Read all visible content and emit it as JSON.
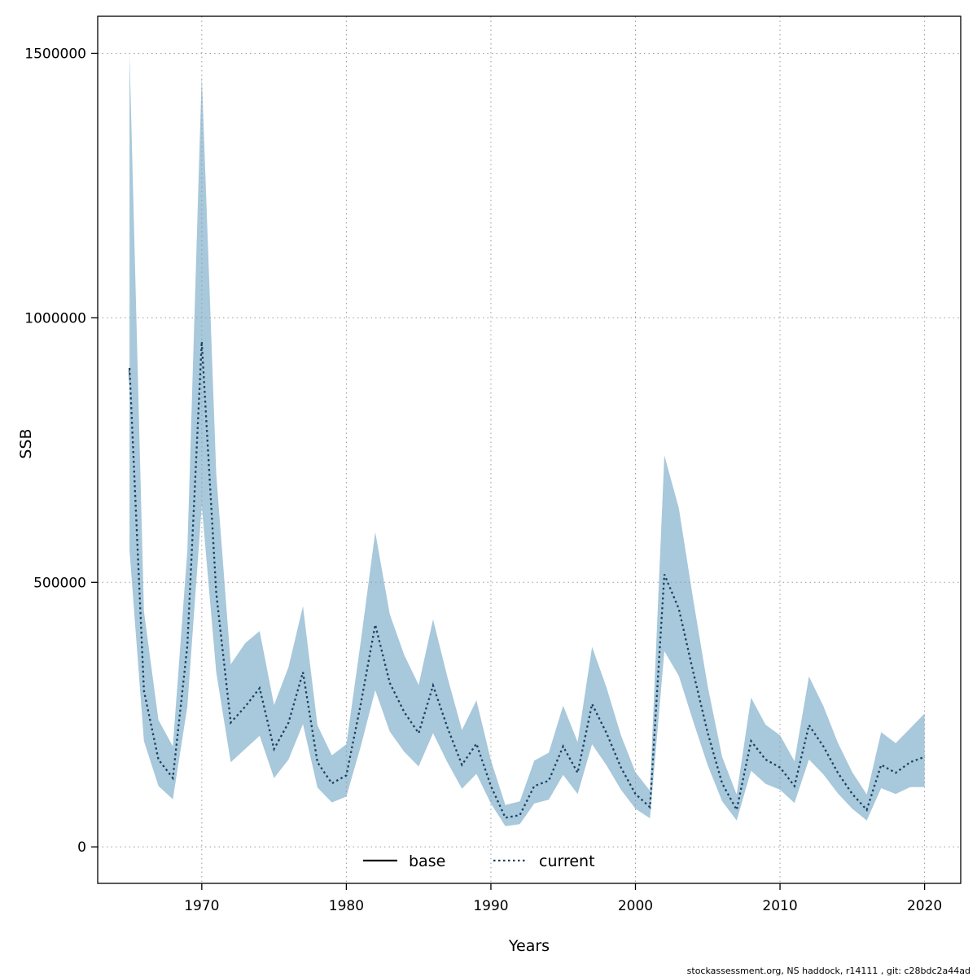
{
  "footer": {
    "attribution": "stockassessment.org, NS haddock, r14111 , git: c28bdc2a44ad"
  },
  "chart_data": {
    "type": "line",
    "title": "",
    "xlabel": "Years",
    "ylabel": "SSB",
    "x_ticks": [
      1970,
      1980,
      1990,
      2000,
      2010,
      2020
    ],
    "y_ticks": [
      0,
      500000,
      1000000,
      1500000
    ],
    "xlim": [
      1962.8,
      2022.5
    ],
    "ylim": [
      -69000,
      1570000
    ],
    "grid": true,
    "legend_position": "bottom-center-inside",
    "legend": [
      {
        "label": "base",
        "line_style": "solid",
        "color": "#000000"
      },
      {
        "label": "current",
        "line_style": "dotted",
        "color": "#1b4060"
      }
    ],
    "colors": {
      "band": "#a8c8db",
      "current_line": "#1b4060",
      "base_line": "#000000",
      "grid_line": "#9a9a9a",
      "axis": "#000000"
    },
    "years": [
      1965,
      1966,
      1967,
      1968,
      1969,
      1970,
      1971,
      1972,
      1973,
      1974,
      1975,
      1976,
      1977,
      1978,
      1979,
      1980,
      1981,
      1982,
      1983,
      1984,
      1985,
      1986,
      1987,
      1988,
      1989,
      1990,
      1991,
      1992,
      1993,
      1994,
      1995,
      1996,
      1997,
      1998,
      1999,
      2000,
      2001,
      2002,
      2003,
      2004,
      2005,
      2006,
      2007,
      2008,
      2009,
      2010,
      2011,
      2012,
      2013,
      2014,
      2015,
      2016,
      2017,
      2018,
      2019,
      2020
    ],
    "series": [
      {
        "name": "base",
        "values": [
          905000,
          295000,
          165000,
          130000,
          380000,
          955000,
          480000,
          235000,
          265000,
          300000,
          185000,
          235000,
          330000,
          160000,
          120000,
          135000,
          270000,
          420000,
          310000,
          255000,
          215000,
          305000,
          225000,
          155000,
          195000,
          115000,
          55000,
          60000,
          115000,
          125000,
          190000,
          140000,
          270000,
          215000,
          150000,
          100000,
          75000,
          515000,
          450000,
          330000,
          215000,
          120000,
          70000,
          200000,
          165000,
          150000,
          115000,
          230000,
          190000,
          140000,
          100000,
          70000,
          155000,
          140000,
          160000,
          170000
        ]
      },
      {
        "name": "current",
        "values": [
          905000,
          295000,
          165000,
          130000,
          380000,
          955000,
          480000,
          235000,
          265000,
          300000,
          185000,
          235000,
          330000,
          160000,
          120000,
          135000,
          270000,
          420000,
          310000,
          255000,
          215000,
          305000,
          225000,
          155000,
          195000,
          115000,
          55000,
          60000,
          115000,
          125000,
          190000,
          140000,
          270000,
          215000,
          150000,
          100000,
          75000,
          515000,
          450000,
          330000,
          215000,
          120000,
          70000,
          200000,
          165000,
          150000,
          115000,
          230000,
          190000,
          140000,
          100000,
          70000,
          155000,
          140000,
          160000,
          170000
        ],
        "lower": [
          560000,
          200000,
          115000,
          90000,
          265000,
          645000,
          330000,
          160000,
          185000,
          210000,
          130000,
          165000,
          232000,
          112000,
          84000,
          95000,
          190000,
          296000,
          218000,
          180000,
          152000,
          215000,
          159000,
          110000,
          138000,
          82000,
          39000,
          43000,
          82000,
          89000,
          136000,
          100000,
          194000,
          154000,
          108000,
          72000,
          54000,
          370000,
          323000,
          237000,
          154000,
          86000,
          50000,
          144000,
          119000,
          108000,
          83000,
          165000,
          137000,
          101000,
          72000,
          50000,
          111000,
          100000,
          113000,
          113000
        ],
        "upper": [
          1500000,
          445000,
          240000,
          190000,
          560000,
          1460000,
          705000,
          345000,
          385000,
          408000,
          268000,
          340000,
          455000,
          230000,
          173000,
          194000,
          388000,
          595000,
          440000,
          363000,
          306000,
          430000,
          320000,
          221000,
          277000,
          164000,
          79000,
          86000,
          163000,
          178000,
          267000,
          198000,
          378000,
          301000,
          211000,
          141000,
          106000,
          740000,
          640000,
          467000,
          303000,
          170000,
          99000,
          282000,
          231000,
          211000,
          162000,
          322000,
          266000,
          197000,
          141000,
          99000,
          217000,
          196000,
          224000,
          252000
        ]
      }
    ]
  }
}
